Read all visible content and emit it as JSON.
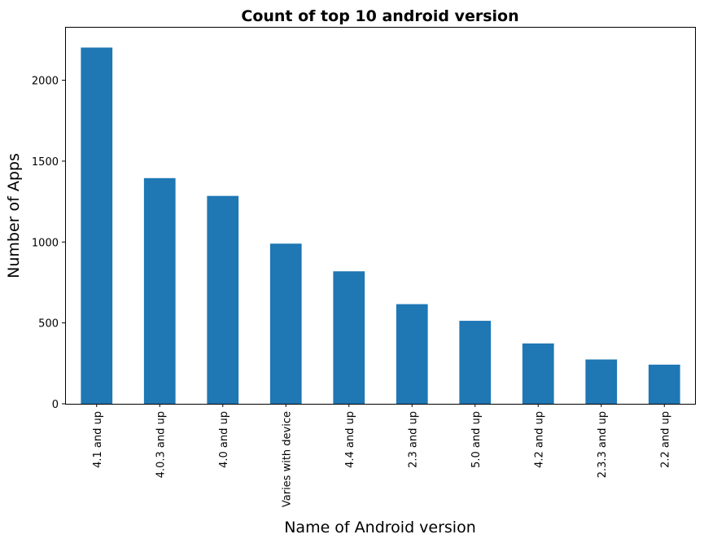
{
  "chart_data": {
    "type": "bar",
    "title": "Count of top 10 android version",
    "xlabel": "Name of Android version",
    "ylabel": "Number of Apps",
    "categories": [
      "4.1 and up",
      "4.0.3 and up",
      "4.0 and up",
      "Varies with device",
      "4.4 and up",
      "2.3 and up",
      "5.0 and up",
      "4.2 and up",
      "2.3.3 and up",
      "2.2 and up"
    ],
    "values": [
      2202,
      1395,
      1285,
      990,
      819,
      616,
      513,
      373,
      274,
      242
    ],
    "yticks": [
      0,
      500,
      1000,
      1500,
      2000
    ],
    "ylim": [
      0,
      2330
    ],
    "bar_color": "#1f77b4",
    "grid": false,
    "legend": "none"
  }
}
